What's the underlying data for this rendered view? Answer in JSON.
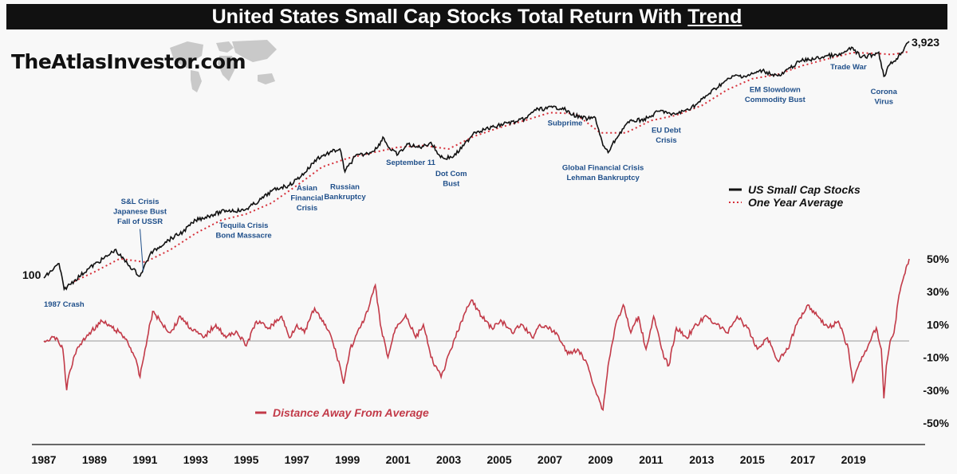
{
  "header": {
    "title": "United States Small Cap Stocks Total Return With",
    "title_emphasis": "Trend"
  },
  "brand": "TheAtlasInvestor.com",
  "colors": {
    "price": "#111111",
    "trend": "#d6303a",
    "distance": "#c23a48",
    "annotation": "#1f4f8a",
    "zero_line": "#999999"
  },
  "chart_data": [
    {
      "type": "line",
      "log_scale": true,
      "series": [
        {
          "name": "US Small Cap Stocks",
          "role": "price"
        },
        {
          "name": "One Year Average",
          "role": "trend"
        }
      ],
      "start_label": "100",
      "end_label": "3,923",
      "x": [
        1987.0,
        1987.6,
        1987.8,
        1988.2,
        1988.8,
        1989.5,
        1989.8,
        1990.3,
        1990.8,
        1991.2,
        1991.8,
        1992.5,
        1993.0,
        1993.6,
        1994.2,
        1994.9,
        1995.5,
        1996.0,
        1996.4,
        1996.7,
        1997.3,
        1997.8,
        1998.3,
        1998.7,
        1998.9,
        1999.3,
        1999.8,
        2000.2,
        2000.4,
        2000.7,
        2001.0,
        2001.4,
        2001.7,
        2002.0,
        2002.3,
        2002.6,
        2002.8,
        2003.2,
        2003.6,
        2004.0,
        2004.4,
        2004.8,
        2005.3,
        2005.7,
        2006.1,
        2006.4,
        2006.8,
        2007.1,
        2007.5,
        2007.8,
        2008.2,
        2008.5,
        2008.8,
        2009.1,
        2009.3,
        2009.6,
        2010.0,
        2010.3,
        2010.6,
        2010.9,
        2011.3,
        2011.6,
        2011.8,
        2012.3,
        2012.8,
        2013.3,
        2013.8,
        2014.3,
        2014.8,
        2015.4,
        2015.8,
        2016.1,
        2016.5,
        2016.9,
        2017.5,
        2018.0,
        2018.4,
        2018.7,
        2018.97,
        2019.3,
        2019.8,
        2020.0,
        2020.2,
        2020.4,
        2020.7,
        2020.9,
        2021.1,
        2021.2
      ],
      "values": [
        100,
        125,
        84,
        96,
        117,
        140,
        155,
        125,
        103,
        145,
        175,
        205,
        245,
        265,
        285,
        285,
        330,
        385,
        410,
        420,
        510,
        640,
        700,
        740,
        520,
        660,
        690,
        760,
        890,
        730,
        680,
        800,
        760,
        770,
        820,
        680,
        640,
        660,
        780,
        960,
        1000,
        1040,
        1110,
        1130,
        1200,
        1360,
        1380,
        1410,
        1400,
        1280,
        1210,
        1180,
        1200,
        780,
        700,
        860,
        1080,
        1150,
        1160,
        1200,
        1330,
        1320,
        1250,
        1330,
        1480,
        1750,
        2050,
        2300,
        2300,
        2500,
        2350,
        2300,
        2600,
        2900,
        3000,
        3150,
        3150,
        3350,
        3560,
        3050,
        3200,
        3320,
        2280,
        2700,
        3000,
        3300,
        3800,
        3923
      ],
      "trend_x": [
        1988.2,
        1989,
        1990,
        1991,
        1992,
        1993,
        1994,
        1995,
        1996,
        1997,
        1998,
        1999,
        2000,
        2001,
        2002,
        2003,
        2004,
        2005,
        2006,
        2007,
        2008,
        2009,
        2010,
        2011,
        2012,
        2013,
        2014,
        2015,
        2016,
        2017,
        2018,
        2019,
        2020,
        2020.5,
        2021.0,
        2021.2
      ],
      "trend_values": [
        95,
        110,
        135,
        128,
        155,
        200,
        245,
        270,
        320,
        420,
        560,
        640,
        700,
        760,
        780,
        740,
        900,
        1030,
        1150,
        1300,
        1280,
        950,
        950,
        1150,
        1250,
        1450,
        1850,
        2200,
        2350,
        2700,
        3000,
        3300,
        3250,
        3200,
        3300,
        3350
      ],
      "annotations": [
        {
          "lines": [
            "1987 Crash"
          ],
          "x": 1987.8,
          "v": 84,
          "pos": "below"
        },
        {
          "lines": [
            "S&L Crisis",
            "Japanese Bust",
            "Fall of USSR"
          ],
          "x": 1990.8,
          "v": 103,
          "pos": "above-far"
        },
        {
          "lines": [
            "Tequila Crisis",
            "Bond Massacre"
          ],
          "x": 1994.9,
          "v": 285,
          "pos": "below"
        },
        {
          "lines": [
            "Asian",
            "Financial",
            "Crisis"
          ],
          "x": 1997.4,
          "v": 510,
          "pos": "below"
        },
        {
          "lines": [
            "Russian",
            "Bankruptcy"
          ],
          "x": 1998.9,
          "v": 520,
          "pos": "below"
        },
        {
          "lines": [
            "September 11"
          ],
          "x": 2001.5,
          "v": 760,
          "pos": "below"
        },
        {
          "lines": [
            "Dot Com",
            "Bust"
          ],
          "x": 2003.1,
          "v": 640,
          "pos": "below"
        },
        {
          "lines": [
            "Subprime"
          ],
          "x": 2007.6,
          "v": 1400,
          "pos": "below"
        },
        {
          "lines": [
            "Global Financial Crisis",
            "Lehman Bankruptcy"
          ],
          "x": 2009.1,
          "v": 700,
          "pos": "below"
        },
        {
          "lines": [
            "EU Debt",
            "Crisis"
          ],
          "x": 2011.6,
          "v": 1250,
          "pos": "below"
        },
        {
          "lines": [
            "EM Slowdown",
            "Commodity Bust"
          ],
          "x": 2015.9,
          "v": 2350,
          "pos": "below"
        },
        {
          "lines": [
            "Trade War"
          ],
          "x": 2018.8,
          "v": 3350,
          "pos": "below"
        },
        {
          "lines": [
            "Corona",
            "Virus"
          ],
          "x": 2020.2,
          "v": 2280,
          "pos": "below"
        }
      ],
      "legend": {
        "placement": "right"
      }
    },
    {
      "type": "line",
      "series": [
        {
          "name": "Distance Away From Average",
          "role": "distance"
        }
      ],
      "ylim": [
        -50,
        50
      ],
      "yticks": [
        50,
        30,
        10,
        -10,
        -30,
        -50
      ],
      "ytick_labels": [
        "50%",
        "30%",
        "10%",
        "-10%",
        "-30%",
        "-50%"
      ],
      "x": [
        1987.0,
        1987.5,
        1987.75,
        1987.9,
        1988.0,
        1988.3,
        1988.8,
        1989.3,
        1989.7,
        1990.0,
        1990.3,
        1990.6,
        1990.8,
        1991.0,
        1991.3,
        1991.6,
        1992.0,
        1992.4,
        1992.8,
        1993.3,
        1993.8,
        1994.2,
        1994.6,
        1995.0,
        1995.4,
        1995.9,
        1996.4,
        1996.7,
        1997.0,
        1997.3,
        1997.7,
        1998.0,
        1998.3,
        1998.7,
        1998.85,
        1999.1,
        1999.5,
        1999.8,
        2000.1,
        2000.3,
        2000.6,
        2000.9,
        2001.3,
        2001.7,
        2002.0,
        2002.3,
        2002.7,
        2003.1,
        2003.5,
        2003.9,
        2004.3,
        2004.7,
        2005.1,
        2005.5,
        2005.9,
        2006.3,
        2006.6,
        2006.9,
        2007.3,
        2007.7,
        2008.1,
        2008.5,
        2008.8,
        2009.0,
        2009.1,
        2009.3,
        2009.6,
        2009.9,
        2010.2,
        2010.5,
        2010.8,
        2011.1,
        2011.5,
        2011.7,
        2012.0,
        2012.4,
        2012.8,
        2013.2,
        2013.6,
        2014.0,
        2014.4,
        2014.8,
        2015.2,
        2015.6,
        2016.0,
        2016.4,
        2016.8,
        2017.2,
        2017.6,
        2018.0,
        2018.4,
        2018.8,
        2018.97,
        2019.2,
        2019.6,
        2019.9,
        2020.1,
        2020.2,
        2020.3,
        2020.45,
        2020.6,
        2020.8,
        2021.0,
        2021.2
      ],
      "values": [
        0,
        2,
        -5,
        -30,
        -20,
        -5,
        5,
        12,
        8,
        5,
        0,
        -10,
        -22,
        -5,
        18,
        12,
        5,
        15,
        8,
        2,
        10,
        2,
        6,
        -3,
        12,
        8,
        15,
        2,
        10,
        5,
        20,
        12,
        5,
        -15,
        -26,
        -5,
        8,
        18,
        34,
        10,
        -10,
        8,
        16,
        2,
        10,
        -10,
        -22,
        -5,
        12,
        25,
        15,
        8,
        12,
        5,
        10,
        2,
        10,
        8,
        4,
        -8,
        -5,
        -15,
        -30,
        -38,
        -42,
        -15,
        10,
        22,
        5,
        15,
        -5,
        15,
        -10,
        -15,
        8,
        2,
        10,
        15,
        10,
        5,
        15,
        8,
        -5,
        2,
        -12,
        -5,
        12,
        22,
        15,
        8,
        12,
        -5,
        -25,
        -15,
        -2,
        8,
        -5,
        -35,
        -15,
        0,
        5,
        28,
        40,
        50
      ],
      "legend": {
        "placement": "bottom-left"
      }
    }
  ],
  "x_axis": {
    "ticks": [
      1987,
      1989,
      1991,
      1993,
      1995,
      1997,
      1999,
      2001,
      2003,
      2005,
      2007,
      2009,
      2011,
      2013,
      2015,
      2017,
      2019
    ],
    "labels": [
      "1987",
      "1989",
      "1991",
      "1993",
      "1995",
      "1997",
      "1999",
      "2001",
      "2003",
      "2005",
      "2007",
      "2009",
      "2011",
      "2013",
      "2015",
      "2017",
      "2019"
    ]
  }
}
